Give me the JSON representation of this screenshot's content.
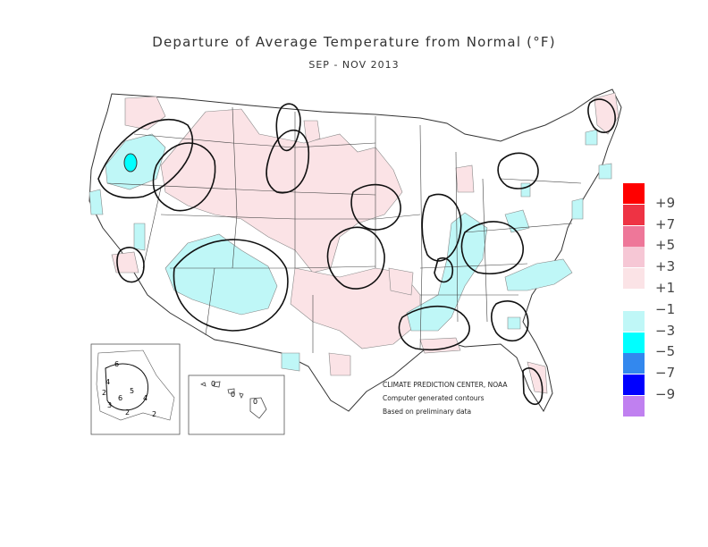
{
  "title": "Departure of Average Temperature from Normal (°F)",
  "subtitle": "SEP - NOV 2013",
  "credits": {
    "agency": "CLIMATE PREDICTION CENTER, NOAA",
    "method": "Computer generated contours",
    "basis": "Based on preliminary data"
  },
  "legend": [
    {
      "label": "+9",
      "color": "#ff0000"
    },
    {
      "label": "+7",
      "color": "#ee3344"
    },
    {
      "label": "+5",
      "color": "#ee7799"
    },
    {
      "label": "+3",
      "color": "#f6c7d5"
    },
    {
      "label": "+1",
      "color": "#fbe3e6"
    },
    {
      "label": "−1",
      "color": "#ffffff"
    },
    {
      "label": "−3",
      "color": "#bff7f7"
    },
    {
      "label": "−5",
      "color": "#00ffff"
    },
    {
      "label": "−7",
      "color": "#3388ee"
    },
    {
      "label": "−9",
      "color": "#0000ff"
    },
    {
      "label": "",
      "color": "#c080f0"
    }
  ],
  "alaska_contour_labels": [
    "6",
    "4",
    "2",
    "3",
    "5",
    "6",
    "4",
    "2",
    "2"
  ],
  "hawaii_contour_labels": [
    "0",
    "0",
    "0"
  ]
}
